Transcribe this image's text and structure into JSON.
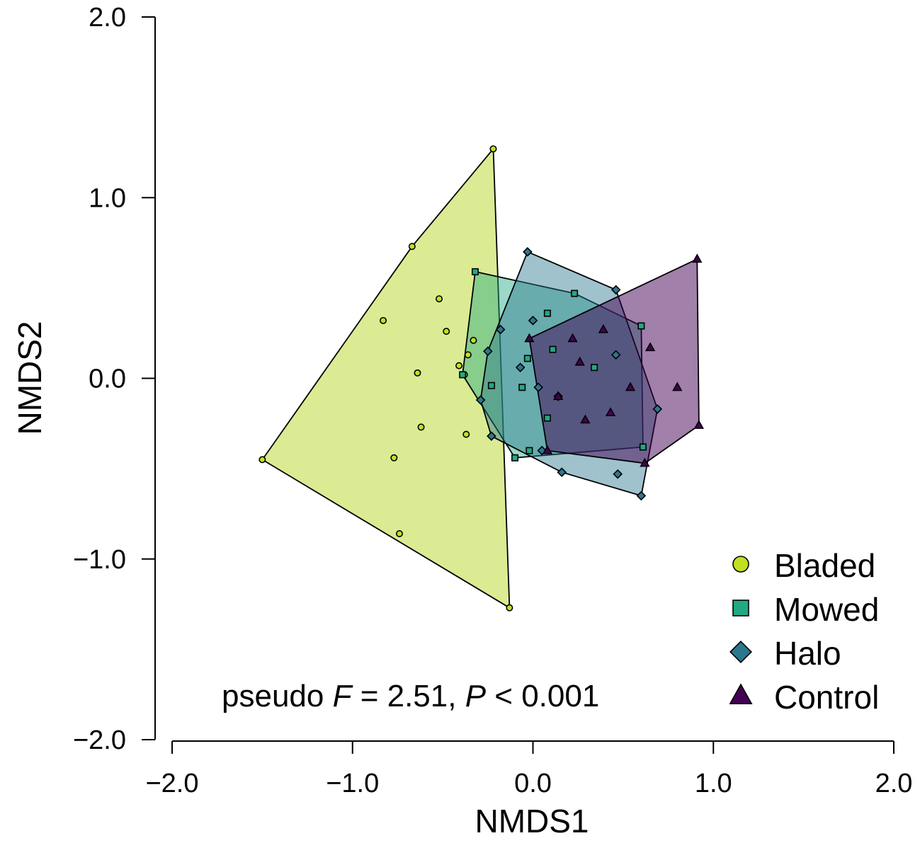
{
  "chart_data": {
    "type": "scatter",
    "title": "",
    "xlabel": "NMDS1",
    "ylabel": "NMDS2",
    "xlim": [
      -2.0,
      2.0
    ],
    "ylim": [
      -2.0,
      2.0
    ],
    "xticks": [
      -2.0,
      -1.0,
      0.0,
      1.0,
      2.0
    ],
    "yticks": [
      -2.0,
      -1.0,
      0.0,
      1.0,
      2.0
    ],
    "xtick_labels": [
      "−2.0",
      "−1.0",
      "0.0",
      "1.0",
      "2.0"
    ],
    "ytick_labels": [
      "−2.0",
      "−1.0",
      "0.0",
      "1.0",
      "2.0"
    ],
    "grid": false,
    "legend_position": "bottom-right",
    "hulls": "convex hull polygon drawn around each series",
    "series": [
      {
        "name": "Bladed",
        "marker": "circle",
        "color": "#c2df23",
        "hull_fill": "#dbeb93",
        "hull_opacity": 1.0,
        "points": [
          [
            -0.22,
            1.27
          ],
          [
            -0.67,
            0.73
          ],
          [
            -0.52,
            0.44
          ],
          [
            -0.83,
            0.32
          ],
          [
            -0.48,
            0.26
          ],
          [
            -0.33,
            0.21
          ],
          [
            -0.36,
            0.13
          ],
          [
            -0.41,
            0.07
          ],
          [
            -0.64,
            0.03
          ],
          [
            -0.38,
            0.02
          ],
          [
            -0.62,
            -0.27
          ],
          [
            -0.37,
            -0.31
          ],
          [
            -0.77,
            -0.44
          ],
          [
            -1.5,
            -0.45
          ],
          [
            -0.74,
            -0.86
          ],
          [
            -0.13,
            -1.27
          ]
        ]
      },
      {
        "name": "Mowed",
        "marker": "square",
        "color": "#22a884",
        "hull_fill": "#22a884",
        "hull_opacity": 0.45,
        "points": [
          [
            -0.32,
            0.59
          ],
          [
            0.23,
            0.47
          ],
          [
            0.08,
            0.36
          ],
          [
            0.6,
            0.29
          ],
          [
            0.11,
            0.16
          ],
          [
            -0.03,
            0.11
          ],
          [
            0.34,
            0.06
          ],
          [
            -0.39,
            0.02
          ],
          [
            -0.23,
            -0.04
          ],
          [
            -0.06,
            -0.05
          ],
          [
            0.08,
            -0.22
          ],
          [
            0.61,
            -0.38
          ],
          [
            -0.02,
            -0.4
          ],
          [
            -0.1,
            -0.44
          ]
        ]
      },
      {
        "name": "Halo",
        "marker": "diamond",
        "color": "#2a788e",
        "hull_fill": "#2a788e",
        "hull_opacity": 0.45,
        "points": [
          [
            -0.03,
            0.7
          ],
          [
            0.46,
            0.49
          ],
          [
            0.0,
            0.32
          ],
          [
            -0.18,
            0.27
          ],
          [
            -0.25,
            0.15
          ],
          [
            0.46,
            0.13
          ],
          [
            -0.07,
            0.06
          ],
          [
            0.03,
            -0.05
          ],
          [
            0.14,
            -0.1
          ],
          [
            -0.29,
            -0.12
          ],
          [
            0.69,
            -0.17
          ],
          [
            -0.23,
            -0.32
          ],
          [
            0.05,
            -0.4
          ],
          [
            0.16,
            -0.52
          ],
          [
            0.47,
            -0.53
          ],
          [
            0.6,
            -0.65
          ]
        ]
      },
      {
        "name": "Control",
        "marker": "triangle",
        "color": "#440154",
        "hull_fill": "#440154",
        "hull_opacity": 0.5,
        "points": [
          [
            0.91,
            0.66
          ],
          [
            0.39,
            0.27
          ],
          [
            0.22,
            0.22
          ],
          [
            -0.02,
            0.22
          ],
          [
            0.65,
            0.17
          ],
          [
            0.26,
            0.09
          ],
          [
            0.54,
            -0.05
          ],
          [
            0.8,
            -0.05
          ],
          [
            0.14,
            -0.1
          ],
          [
            0.43,
            -0.19
          ],
          [
            0.29,
            -0.23
          ],
          [
            0.92,
            -0.26
          ],
          [
            0.08,
            -0.4
          ],
          [
            0.62,
            -0.47
          ]
        ]
      }
    ],
    "annotation": {
      "prefix": "pseudo ",
      "stat1": "F",
      "mid": " = 2.51, ",
      "stat2": "P",
      "suffix": " < 0.001"
    }
  }
}
